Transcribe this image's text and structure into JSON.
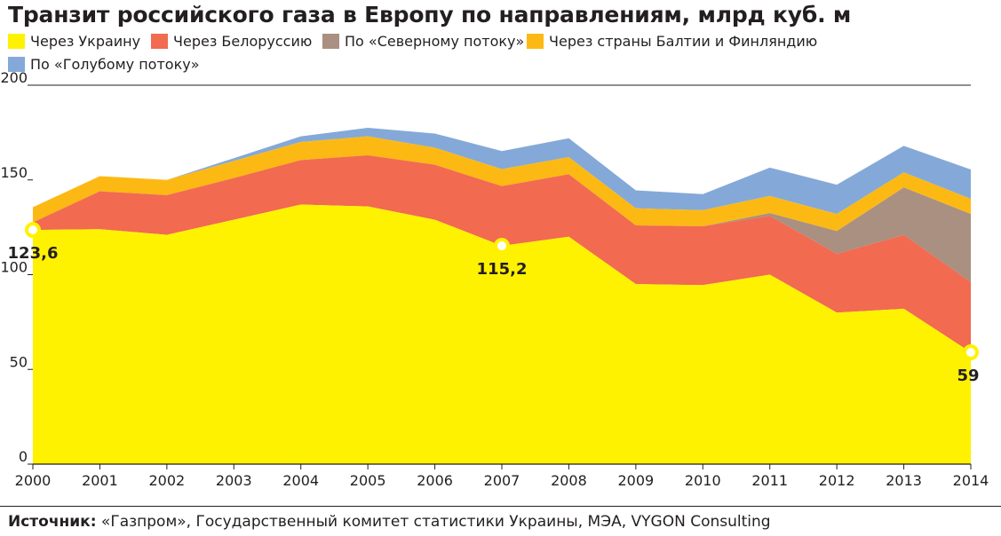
{
  "header": {
    "title": "Транзит российского газа в Европу по направлениям, млрд куб. м"
  },
  "legend": [
    {
      "label": "Через Украину",
      "color": "#fff200"
    },
    {
      "label": "Через Белоруссию",
      "color": "#f26a50"
    },
    {
      "label": "По «Северному потоку»",
      "color": "#a99080"
    },
    {
      "label": "Через страны Балтии и Финляндию",
      "color": "#fdb913"
    },
    {
      "label": "По «Голубому потоку»",
      "color": "#84a9d8"
    }
  ],
  "footer": {
    "source_label": "Источник:",
    "source_text": "«Газпром», Государственный комитет статистики Украины, МЭА, VYGON Consulting"
  },
  "chart_data": {
    "type": "area",
    "stacked": true,
    "title": "Транзит российского газа в Европу по направлениям, млрд куб. м",
    "xlabel": "",
    "ylabel": "",
    "ylim": [
      0,
      200
    ],
    "yticks": [
      0,
      50,
      100,
      150,
      200
    ],
    "categories": [
      "2000",
      "2001",
      "2002",
      "2003",
      "2004",
      "2005",
      "2006",
      "2007",
      "2008",
      "2009",
      "2010",
      "2011",
      "2012",
      "2013",
      "2014"
    ],
    "series": [
      {
        "name": "Через Украину",
        "color": "#fff200",
        "values": [
          123.6,
          124,
          121,
          129,
          137,
          136,
          129,
          115.2,
          120,
          95,
          94.5,
          100,
          80,
          82,
          59
        ]
      },
      {
        "name": "Через Белоруссию",
        "color": "#f26a50",
        "values": [
          4,
          20,
          21,
          22,
          23.5,
          27,
          29,
          31.5,
          33,
          31,
          31,
          31,
          31,
          39,
          37
        ]
      },
      {
        "name": "По «Северному потоку»",
        "color": "#a99080",
        "values": [
          0,
          0,
          0,
          0,
          0,
          0,
          0,
          0,
          0,
          0,
          0,
          1.5,
          12,
          25,
          36
        ]
      },
      {
        "name": "Через страны Балтии и Финляндию",
        "color": "#fdb913",
        "values": [
          8,
          8,
          8,
          9,
          9.5,
          10,
          9,
          9,
          9,
          9,
          8.5,
          9,
          9,
          8,
          8
        ]
      },
      {
        "name": "По «Голубому потоку»",
        "color": "#84a9d8",
        "values": [
          0,
          0,
          0,
          1.5,
          3,
          4.5,
          7.5,
          9.5,
          10,
          9.5,
          8.5,
          15,
          15.5,
          14,
          15.5
        ]
      }
    ],
    "annotations": [
      {
        "series": "Через Украину",
        "category": "2000",
        "value": 123.6,
        "label": "123,6"
      },
      {
        "series": "Через Украину",
        "category": "2007",
        "value": 115.2,
        "label": "115,2"
      },
      {
        "series": "Через Украину",
        "category": "2014",
        "value": 59,
        "label": "59"
      }
    ]
  }
}
